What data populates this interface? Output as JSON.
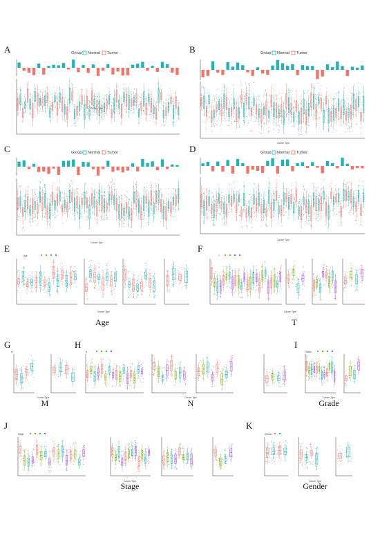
{
  "panels": {
    "A": {
      "letter": "A",
      "legend_title": "Group",
      "legend_items": [
        "Normal",
        "Tumor"
      ],
      "x_label": "Cancer Type"
    },
    "B": {
      "letter": "B",
      "legend_title": "Group",
      "legend_items": [
        "Normal",
        "Tumor"
      ],
      "x_label": "Cancer Type"
    },
    "C": {
      "letter": "C",
      "legend_title": "Group",
      "legend_items": [
        "Normal",
        "Tumor"
      ],
      "x_label": "Cancer Type"
    },
    "D": {
      "letter": "D",
      "legend_title": "Group",
      "legend_items": [
        "Normal",
        "Tumor"
      ],
      "x_label": "Cancer Type"
    },
    "E": {
      "letter": "E",
      "label": "Age",
      "legend_title": "Age",
      "x_label": "Cancer Type"
    },
    "F": {
      "letter": "F",
      "label": "T",
      "legend_title": "T",
      "x_label": "Cancer Type"
    },
    "G": {
      "letter": "G",
      "label": "M",
      "legend_title": "M",
      "x_label": "Cancer Type"
    },
    "H": {
      "letter": "H",
      "label": "N",
      "legend_title": "N",
      "x_label": "Cancer Type"
    },
    "I": {
      "letter": "I",
      "label": "Grade",
      "legend_title": "Grade",
      "x_label": "Cancer Type"
    },
    "J": {
      "letter": "J",
      "label": "Stage",
      "legend_title": "Stage",
      "x_label": "Cancer Type"
    },
    "K": {
      "letter": "K",
      "label": "Gender",
      "legend_title": "Gender",
      "x_label": "Cancer Type"
    }
  },
  "colors": {
    "normal": "#1fb3b6",
    "tumor": "#f0746a",
    "green": "#7cae00",
    "purple": "#a64ee3",
    "blue": "#2f8fe0",
    "axis": "#333333"
  }
}
